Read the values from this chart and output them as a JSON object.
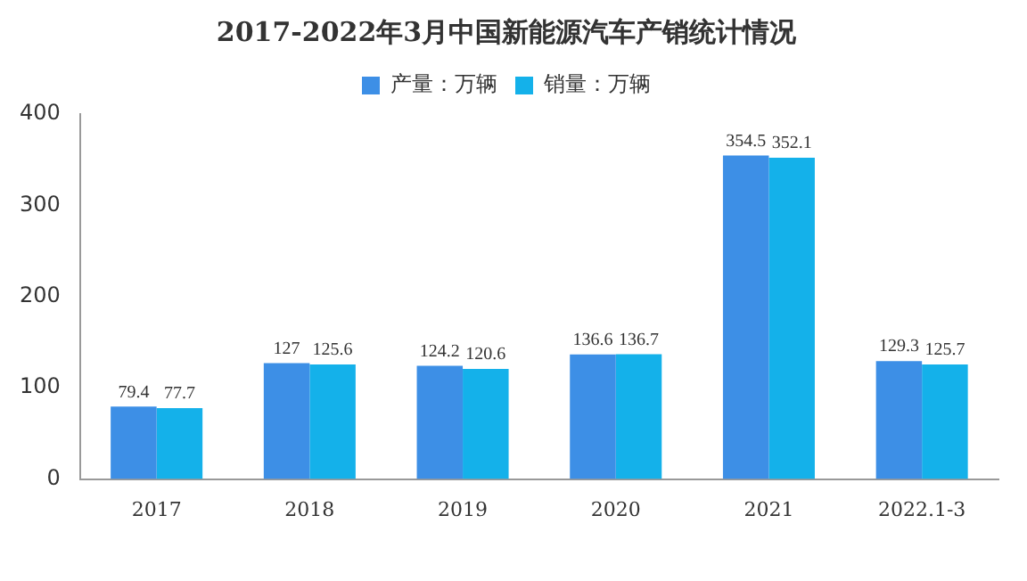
{
  "chart_data": {
    "type": "bar",
    "title": "2017-2022年3月中国新能源汽车产销统计情况",
    "categories": [
      "2017",
      "2018",
      "2019",
      "2020",
      "2021",
      "2022.1-3"
    ],
    "series": [
      {
        "name": "产量：万辆",
        "color": "#3d8fe6",
        "values": [
          79.4,
          127,
          124.2,
          136.6,
          354.5,
          129.3
        ]
      },
      {
        "name": "销量：万辆",
        "color": "#14b1ea",
        "values": [
          77.7,
          125.6,
          120.6,
          136.7,
          352.1,
          125.7
        ]
      }
    ],
    "ylim": [
      0,
      400
    ],
    "yticks": [
      0,
      100,
      200,
      300,
      400
    ],
    "grid": false,
    "legend": "top",
    "data_labels": true
  }
}
